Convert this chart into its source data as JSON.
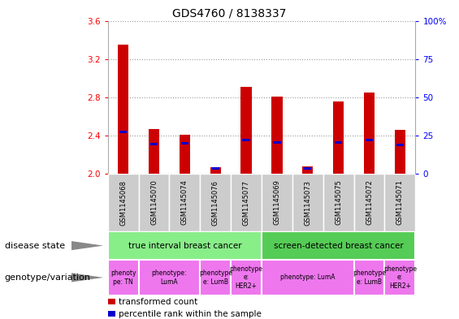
{
  "title": "GDS4760 / 8138337",
  "samples": [
    "GSM1145068",
    "GSM1145070",
    "GSM1145074",
    "GSM1145076",
    "GSM1145077",
    "GSM1145069",
    "GSM1145073",
    "GSM1145075",
    "GSM1145072",
    "GSM1145071"
  ],
  "red_values": [
    3.35,
    2.47,
    2.41,
    2.07,
    2.91,
    2.81,
    2.08,
    2.76,
    2.85,
    2.46
  ],
  "blue_values": [
    2.44,
    2.31,
    2.32,
    2.06,
    2.35,
    2.33,
    2.06,
    2.33,
    2.35,
    2.3
  ],
  "ylim": [
    2.0,
    3.6
  ],
  "yticks": [
    2.0,
    2.4,
    2.8,
    3.2,
    3.6
  ],
  "y2ticks_pct": [
    0,
    25,
    50,
    75,
    100
  ],
  "y2labels": [
    "0",
    "25",
    "50",
    "75",
    "100%"
  ],
  "bar_width": 0.35,
  "bar_color_red": "#CC0000",
  "bar_color_blue": "#0000CC",
  "ds_groups": [
    {
      "label": "true interval breast cancer",
      "start": 0,
      "end": 5,
      "color": "#88EE88"
    },
    {
      "label": "screen-detected breast cancer",
      "start": 5,
      "end": 10,
      "color": "#55CC55"
    }
  ],
  "gt_cells": [
    {
      "label": "phenoty\npe: TN",
      "start": 0,
      "end": 1
    },
    {
      "label": "phenotype:\nLumA",
      "start": 1,
      "end": 3
    },
    {
      "label": "phenotype\ne: LumB",
      "start": 3,
      "end": 4
    },
    {
      "label": "phenotype\ne:\nHER2+",
      "start": 4,
      "end": 5
    },
    {
      "label": "phenotype: LumA",
      "start": 5,
      "end": 8
    },
    {
      "label": "phenotype\ne: LumB",
      "start": 8,
      "end": 9
    },
    {
      "label": "phenotype\ne:\nHER2+",
      "start": 9,
      "end": 10
    }
  ],
  "gt_color": "#EE77EE",
  "title_fontsize": 10,
  "ylabel_fontsize": 8,
  "tick_fontsize": 7.5,
  "label_fontsize": 8
}
